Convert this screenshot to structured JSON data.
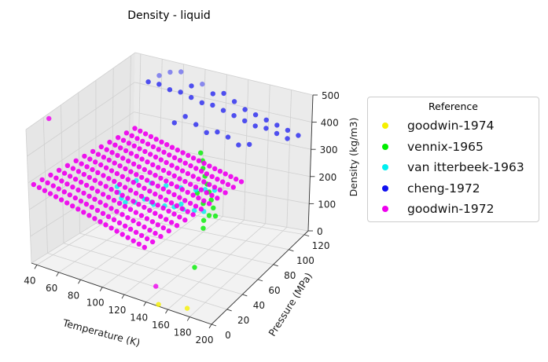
{
  "chart_data": {
    "type": "scatter",
    "projection": "3d",
    "title": "Density - liquid",
    "xlabel": "Temperature (K)",
    "ylabel": "Pressure (MPa)",
    "zlabel": "Density (kg/m3)",
    "xlim": [
      35,
      200
    ],
    "ylim": [
      0,
      125
    ],
    "zlim": [
      0,
      500
    ],
    "x_ticks": [
      40,
      60,
      80,
      100,
      120,
      140,
      160,
      180,
      200
    ],
    "y_ticks": [
      0,
      20,
      40,
      60,
      80,
      100,
      120
    ],
    "z_ticks": [
      0,
      100,
      200,
      300,
      400,
      500
    ],
    "grid": true,
    "legend_title": "Reference",
    "legend_position": "right",
    "series": [
      {
        "name": "goodwin-1974",
        "color": "#f5f000",
        "points": [
          [
            150,
            2,
            0
          ],
          [
            172,
            8,
            0
          ]
        ]
      },
      {
        "name": "vennix-1965",
        "color": "#00ee00",
        "points": [
          [
            145,
            55,
            0
          ],
          [
            140,
            88,
            100
          ],
          [
            130,
            96,
            130
          ],
          [
            125,
            100,
            145
          ],
          [
            120,
            104,
            160
          ],
          [
            135,
            92,
            115
          ],
          [
            115,
            108,
            175
          ],
          [
            110,
            112,
            190
          ],
          [
            140,
            80,
            120
          ],
          [
            130,
            86,
            140
          ],
          [
            120,
            92,
            155
          ],
          [
            105,
            118,
            200
          ],
          [
            100,
            122,
            215
          ],
          [
            142,
            70,
            100
          ],
          [
            138,
            76,
            110
          ]
        ]
      },
      {
        "name": "van itterbeek-1963",
        "color": "#00f0f0",
        "points": [
          [
            70,
            60,
            200
          ],
          [
            75,
            55,
            195
          ],
          [
            80,
            52,
            185
          ],
          [
            85,
            50,
            180
          ],
          [
            90,
            55,
            175
          ],
          [
            95,
            60,
            180
          ],
          [
            100,
            62,
            170
          ],
          [
            105,
            58,
            175
          ],
          [
            110,
            65,
            160
          ],
          [
            115,
            70,
            150
          ],
          [
            120,
            72,
            160
          ],
          [
            125,
            68,
            155
          ],
          [
            130,
            75,
            140
          ],
          [
            135,
            80,
            130
          ],
          [
            100,
            80,
            190
          ],
          [
            110,
            85,
            180
          ],
          [
            120,
            90,
            170
          ],
          [
            90,
            75,
            200
          ],
          [
            80,
            70,
            210
          ],
          [
            125,
            95,
            165
          ],
          [
            130,
            100,
            155
          ]
        ]
      },
      {
        "name": "cheng-1972",
        "color": "#1010f0",
        "points": [
          [
            50,
            122,
            420
          ],
          [
            60,
            122,
            420
          ],
          [
            70,
            122,
            410
          ],
          [
            80,
            122,
            410
          ],
          [
            90,
            122,
            400
          ],
          [
            100,
            122,
            390
          ],
          [
            110,
            122,
            390
          ],
          [
            120,
            122,
            380
          ],
          [
            130,
            122,
            370
          ],
          [
            140,
            122,
            360
          ],
          [
            150,
            122,
            350
          ],
          [
            160,
            122,
            350
          ],
          [
            170,
            122,
            340
          ],
          [
            180,
            122,
            330
          ],
          [
            70,
            122,
            470
          ],
          [
            80,
            122,
            480
          ],
          [
            60,
            122,
            450
          ],
          [
            90,
            122,
            440
          ],
          [
            100,
            122,
            455
          ],
          [
            110,
            122,
            430
          ],
          [
            120,
            122,
            440
          ],
          [
            130,
            122,
            420
          ],
          [
            140,
            122,
            400
          ],
          [
            150,
            122,
            390
          ],
          [
            160,
            122,
            380
          ],
          [
            170,
            122,
            370
          ],
          [
            180,
            122,
            360
          ],
          [
            190,
            122,
            350
          ],
          [
            75,
            122,
            300
          ],
          [
            85,
            122,
            330
          ],
          [
            95,
            122,
            310
          ],
          [
            105,
            122,
            290
          ],
          [
            115,
            122,
            300
          ],
          [
            125,
            122,
            290
          ],
          [
            135,
            122,
            270
          ],
          [
            145,
            122,
            280
          ]
        ]
      },
      {
        "name": "goodwin-1972",
        "color": "#ee00ee",
        "points": [
          [
            40,
            20,
            500
          ],
          [
            148,
            2,
            60
          ]
        ],
        "grid_T": [
          40,
          45,
          50,
          55,
          60,
          65,
          70,
          75,
          80,
          85,
          90,
          95,
          100,
          105,
          110,
          115,
          120,
          125,
          130,
          135,
          140
        ],
        "grid_P": [
          0,
          10,
          20,
          30,
          40,
          50,
          60,
          70,
          80,
          90,
          100,
          110,
          120
        ]
      }
    ]
  }
}
